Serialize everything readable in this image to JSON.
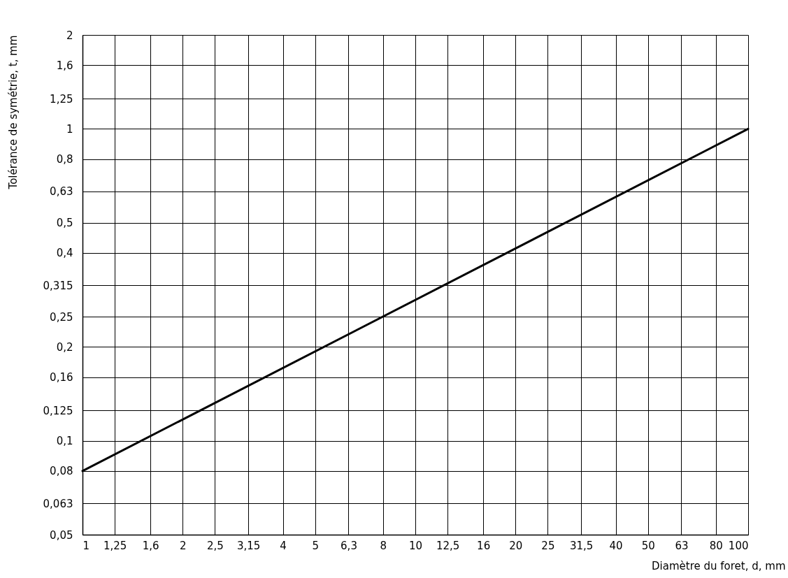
{
  "chart_data": {
    "type": "line",
    "xlabel": "Diamètre du foret, d, mm",
    "ylabel": "Tolérance de symétrie, t, mm",
    "x": [
      1,
      100
    ],
    "series": [
      {
        "color": "#000000",
        "values": [
          0.08,
          1
        ]
      }
    ],
    "log": "xy",
    "xlim": [
      1,
      100
    ],
    "xticks": [
      1,
      {
        "value": 1.25,
        "label": "1,25"
      },
      {
        "value": 1.6,
        "label": "1,6"
      },
      2,
      {
        "value": 2.5,
        "label": "2,5"
      },
      {
        "value": 3.15,
        "label": "3,15"
      },
      4,
      5,
      {
        "value": 6.3,
        "label": "6,3"
      },
      8,
      10,
      {
        "value": 12.5,
        "label": "12,5"
      },
      16,
      20,
      25,
      {
        "value": 31.5,
        "label": "31,5"
      },
      40,
      50,
      63,
      80,
      100
    ],
    "ylim": [
      0.05,
      2
    ],
    "yticks": [
      {
        "value": 0.05,
        "label": "0,05"
      },
      {
        "value": 0.063,
        "label": "0,063"
      },
      {
        "value": 0.08,
        "label": "0,08"
      },
      {
        "value": 0.1,
        "label": "0,1"
      },
      {
        "value": 0.125,
        "label": "0,125"
      },
      {
        "value": 0.16,
        "label": "0,16"
      },
      {
        "value": 0.2,
        "label": "0,2"
      },
      {
        "value": 0.25,
        "label": "0,25"
      },
      {
        "value": 0.315,
        "label": "0,315"
      },
      {
        "value": 0.4,
        "label": "0,4"
      },
      {
        "value": 0.5,
        "label": "0,5"
      },
      {
        "value": 0.63,
        "label": "0,63"
      },
      {
        "value": 0.8,
        "label": "0,8"
      },
      1,
      {
        "value": 1.25,
        "label": "1,25"
      },
      {
        "value": 1.6,
        "label": "1,6"
      },
      2
    ],
    "grid": true,
    "line_style": "solid"
  }
}
